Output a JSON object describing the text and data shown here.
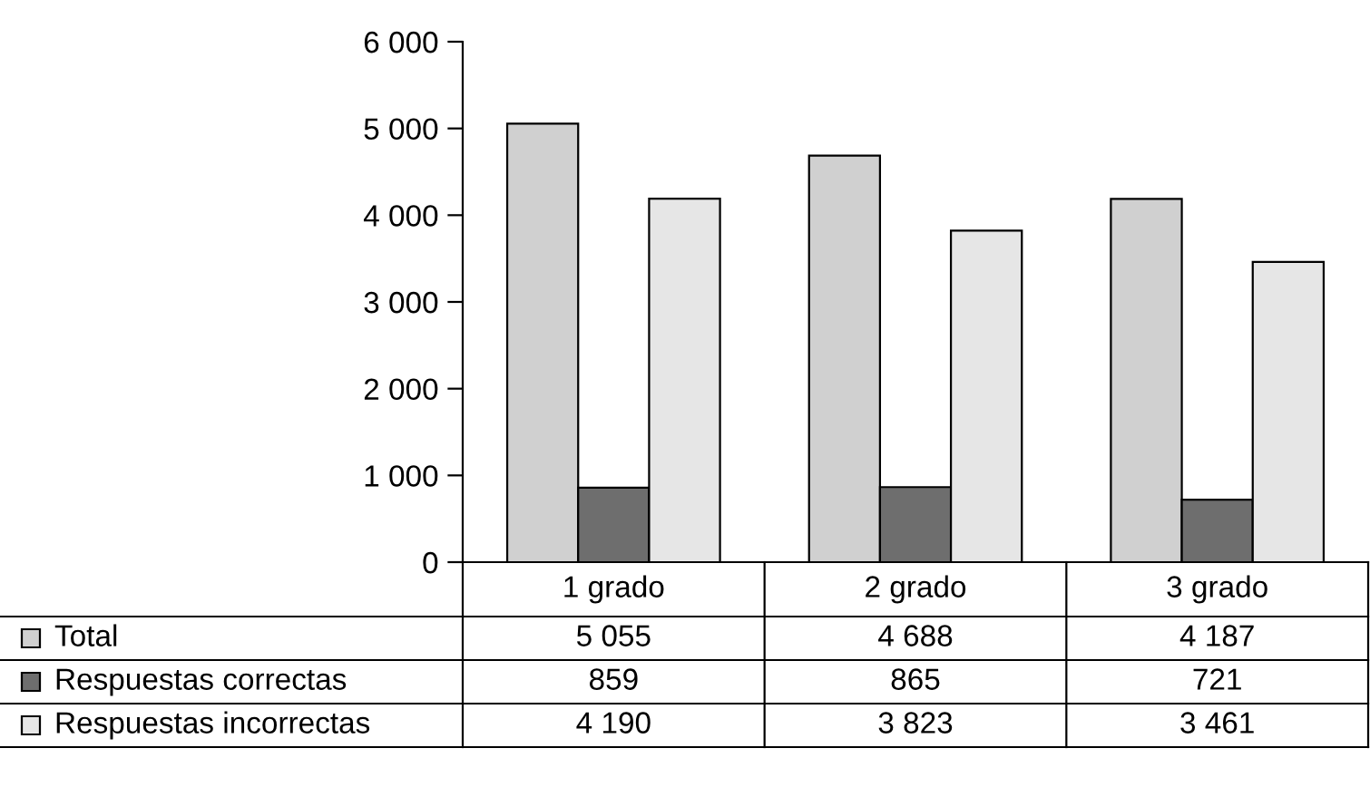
{
  "chart_data": {
    "type": "bar",
    "categories": [
      "1 grado",
      "2 grado",
      "3 grado"
    ],
    "series": [
      {
        "name": "Total",
        "color": "#d0d0d0",
        "values": [
          5055,
          4688,
          4187
        ],
        "value_labels": [
          "5 055",
          "4 688",
          "4 187"
        ]
      },
      {
        "name": "Respuestas correctas",
        "color": "#6e6e6e",
        "values": [
          859,
          865,
          721
        ],
        "value_labels": [
          "859",
          "865",
          "721"
        ]
      },
      {
        "name": "Respuestas incorrectas",
        "color": "#e6e6e6",
        "values": [
          4190,
          3823,
          3461
        ],
        "value_labels": [
          "4 190",
          "3 823",
          "3 461"
        ]
      }
    ],
    "ylim": [
      0,
      6000
    ],
    "yticks": [
      0,
      {
        "value": 1000,
        "label": "1 000"
      },
      {
        "value": 2000,
        "label": "2 000"
      },
      {
        "value": 3000,
        "label": "3 000"
      },
      {
        "value": 4000,
        "label": "4 000"
      },
      {
        "value": 5000,
        "label": "5 000"
      },
      {
        "value": 6000,
        "label": "6 000"
      }
    ],
    "grid": false,
    "legend": "bottom"
  }
}
